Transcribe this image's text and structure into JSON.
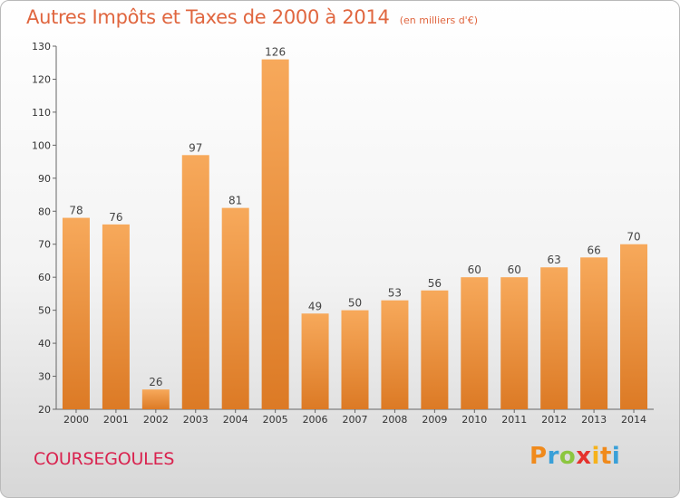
{
  "header": {
    "title": "Autres Impôts et Taxes de 2000 à 2014",
    "subtitle": "(en milliers d'€)"
  },
  "footer": {
    "commune": "COURSEGOULES",
    "logo_text": "Proxiti"
  },
  "colors": {
    "bar_light": "#f7a95b",
    "bar_dark": "#dc7a25",
    "title": "#e0663f",
    "commune": "#d9234f"
  },
  "chart_data": {
    "type": "bar",
    "title": "Autres Impôts et Taxes de 2000 à 2014",
    "subtitle": "(en milliers d'€)",
    "categories": [
      "2000",
      "2001",
      "2002",
      "2003",
      "2004",
      "2005",
      "2006",
      "2007",
      "2008",
      "2009",
      "2010",
      "2011",
      "2012",
      "2013",
      "2014"
    ],
    "values": [
      78,
      76,
      26,
      97,
      81,
      126,
      49,
      50,
      53,
      56,
      60,
      60,
      63,
      66,
      70
    ],
    "ylim": [
      20,
      130
    ],
    "yticks": [
      20,
      30,
      40,
      50,
      60,
      70,
      80,
      90,
      100,
      110,
      120,
      130
    ],
    "grid": false,
    "legend": "none"
  }
}
